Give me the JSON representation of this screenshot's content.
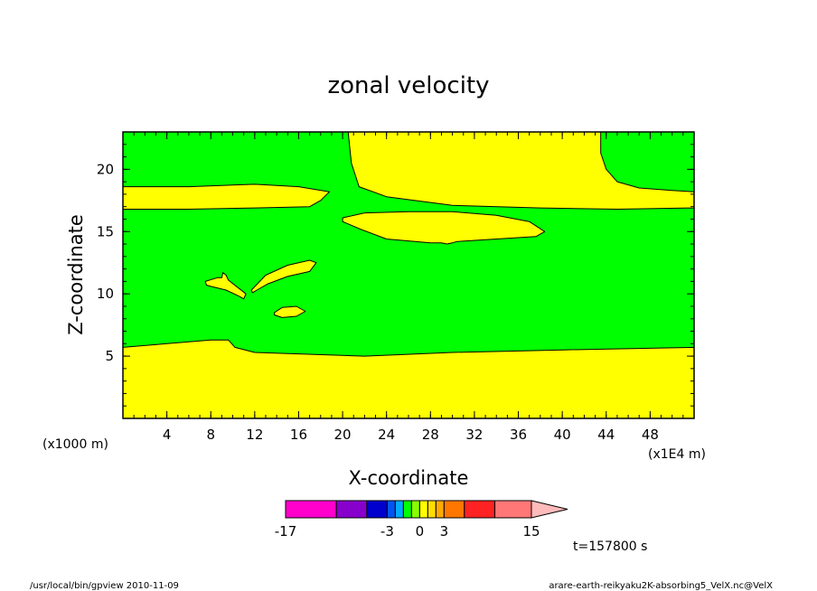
{
  "chart_data": {
    "type": "contour",
    "title": "zonal velocity",
    "xlabel": "X-coordinate",
    "ylabel": "Z-coordinate",
    "x_unit_left": "(x1000 m)",
    "x_unit_right": "(x1E4 m)",
    "xlim": [
      0,
      52
    ],
    "ylim": [
      0,
      23
    ],
    "x_ticks": [
      4,
      8,
      12,
      16,
      20,
      24,
      28,
      32,
      36,
      40,
      44,
      48
    ],
    "x_minor_step": 1,
    "y_ticks": [
      5,
      10,
      15,
      20
    ],
    "y_minor_step": 1,
    "regions": [
      {
        "name": "lower-yellow",
        "color": "#ffff00",
        "points": [
          [
            0,
            0
          ],
          [
            52,
            0
          ],
          [
            52,
            5.7
          ],
          [
            40,
            5.5
          ],
          [
            30,
            5.3
          ],
          [
            22,
            5.0
          ],
          [
            12,
            5.3
          ],
          [
            10.2,
            5.7
          ],
          [
            9.6,
            6.3
          ],
          [
            8,
            6.3
          ],
          [
            4,
            6.0
          ],
          [
            0,
            5.7
          ]
        ]
      },
      {
        "name": "band-yellow-left",
        "color": "#ffff00",
        "points": [
          [
            0,
            18.6
          ],
          [
            6,
            18.6
          ],
          [
            12,
            18.8
          ],
          [
            16,
            18.6
          ],
          [
            18.8,
            18.2
          ],
          [
            18,
            17.5
          ],
          [
            17,
            17.0
          ],
          [
            12,
            16.9
          ],
          [
            6,
            16.8
          ],
          [
            0,
            16.8
          ]
        ]
      },
      {
        "name": "upper-yellow",
        "color": "#ffff00",
        "points": [
          [
            20.5,
            23
          ],
          [
            43.5,
            23
          ],
          [
            43.5,
            21.3
          ],
          [
            44,
            20
          ],
          [
            45,
            19
          ],
          [
            47,
            18.5
          ],
          [
            50,
            18.3
          ],
          [
            52,
            18.2
          ],
          [
            52,
            16.9
          ],
          [
            45,
            16.8
          ],
          [
            38,
            16.9
          ],
          [
            30,
            17.1
          ],
          [
            24,
            17.8
          ],
          [
            21.5,
            18.6
          ],
          [
            20.8,
            20.5
          ]
        ]
      },
      {
        "name": "center-blob",
        "color": "#ffff00",
        "points": [
          [
            20,
            16.1
          ],
          [
            22,
            16.5
          ],
          [
            26,
            16.6
          ],
          [
            30,
            16.6
          ],
          [
            34,
            16.3
          ],
          [
            37,
            15.8
          ],
          [
            38.4,
            15.0
          ],
          [
            37.6,
            14.6
          ],
          [
            34,
            14.4
          ],
          [
            30.4,
            14.2
          ],
          [
            30,
            14.1
          ],
          [
            29.5,
            14.0
          ],
          [
            29,
            14.1
          ],
          [
            28,
            14.1
          ],
          [
            24,
            14.4
          ],
          [
            21.6,
            15.2
          ],
          [
            20,
            15.8
          ]
        ]
      },
      {
        "name": "blob-left-spike",
        "color": "#ffff00",
        "points": [
          [
            7.5,
            11.0
          ],
          [
            8.6,
            11.3
          ],
          [
            9.0,
            11.3
          ],
          [
            9.1,
            11.7
          ],
          [
            9.4,
            11.5
          ],
          [
            9.6,
            11.1
          ],
          [
            11.2,
            10.0
          ],
          [
            11.0,
            9.6
          ],
          [
            10.6,
            9.8
          ],
          [
            9.4,
            10.3
          ],
          [
            8.0,
            10.6
          ],
          [
            7.6,
            10.7
          ]
        ]
      },
      {
        "name": "blob-middle",
        "color": "#ffff00",
        "points": [
          [
            11.7,
            10.3
          ],
          [
            13.0,
            11.5
          ],
          [
            15.0,
            12.3
          ],
          [
            17.0,
            12.7
          ],
          [
            17.6,
            12.5
          ],
          [
            17.0,
            11.8
          ],
          [
            15.0,
            11.4
          ],
          [
            13.2,
            10.8
          ],
          [
            12.2,
            10.3
          ],
          [
            11.8,
            10.1
          ]
        ]
      },
      {
        "name": "blob-small",
        "color": "#ffff00",
        "points": [
          [
            13.8,
            8.5
          ],
          [
            14.5,
            8.9
          ],
          [
            15.8,
            9.0
          ],
          [
            16.6,
            8.6
          ],
          [
            15.8,
            8.2
          ],
          [
            14.5,
            8.1
          ],
          [
            13.8,
            8.3
          ]
        ]
      }
    ],
    "colorbar": {
      "segments": [
        {
          "color": "#ff00cc",
          "weight": 5
        },
        {
          "color": "#8800cc",
          "weight": 3
        },
        {
          "color": "#0000cc",
          "weight": 2
        },
        {
          "color": "#0055ee",
          "weight": 0.8
        },
        {
          "color": "#00aaff",
          "weight": 0.8
        },
        {
          "color": "#00ff00",
          "weight": 0.8
        },
        {
          "color": "#88ff00",
          "weight": 0.8
        },
        {
          "color": "#ffff00",
          "weight": 0.8
        },
        {
          "color": "#ffdd00",
          "weight": 0.8
        },
        {
          "color": "#ffaa00",
          "weight": 0.8
        },
        {
          "color": "#ff7700",
          "weight": 2
        },
        {
          "color": "#ff2222",
          "weight": 3
        },
        {
          "color": "#ff7777",
          "weight": 3.6
        }
      ],
      "arrow_color": "#ffbbbb",
      "tick_labels": [
        {
          "label": "-17",
          "segment_edge": 0
        },
        {
          "label": "-3",
          "segment_edge": 3
        },
        {
          "label": "0",
          "segment_edge": 7
        },
        {
          "label": "3",
          "segment_edge": 10
        },
        {
          "label": "15",
          "segment_edge": 13
        }
      ]
    },
    "background_color": "#00ff00"
  },
  "annotations": {
    "time": "t=157800 s",
    "footer_left": "/usr/local/bin/gpview   2010-11-09",
    "footer_right": "arare-earth-reikyaku2K-absorbing5_VelX.nc@VelX"
  }
}
